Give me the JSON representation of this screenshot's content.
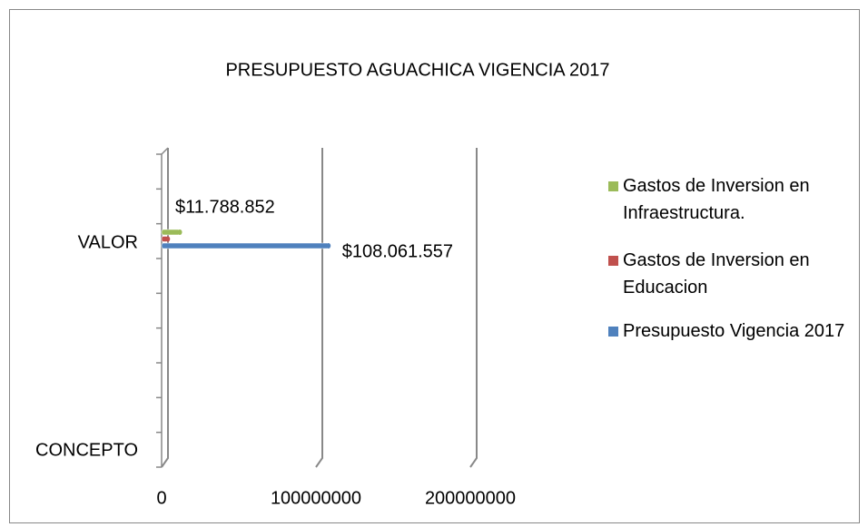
{
  "chart_data": {
    "type": "bar3d_horizontal",
    "title": "PRESUPUESTO AGUACHICA VIGENCIA 2017",
    "categories": [
      "VALOR",
      "CONCEPTO"
    ],
    "series": [
      {
        "name": "Presupuesto Vigencia 2017",
        "color": "#4f81bd",
        "values": [
          108061557,
          null
        ],
        "value_labels": [
          "$108.061.557",
          null
        ]
      },
      {
        "name": "Gastos de Inversion en Educacion",
        "color": "#c0504d",
        "values": [
          4000000,
          null
        ]
      },
      {
        "name": "Gastos de Inversion en Infraestructura.",
        "color": "#9bbb59",
        "values": [
          11788852,
          null
        ],
        "value_labels": [
          "$11.788.852",
          null
        ]
      }
    ],
    "xlim": [
      0,
      200000000
    ],
    "xticks": [
      0,
      100000000,
      200000000
    ],
    "grid": true,
    "legend": "right"
  }
}
